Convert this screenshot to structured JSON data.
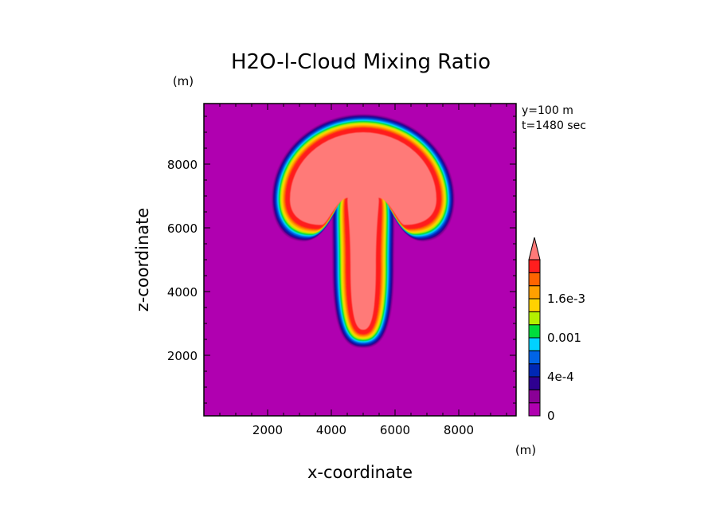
{
  "chart_data": {
    "type": "heatmap",
    "title": "H2O-l-Cloud Mixing Ratio",
    "xlabel": "x-coordinate",
    "ylabel": "z-coordinate",
    "x_unit": "(m)",
    "y_unit": "(m)",
    "xlim": [
      0,
      9800
    ],
    "ylim": [
      100,
      9900
    ],
    "xticks": [
      2000,
      4000,
      6000,
      8000
    ],
    "yticks": [
      2000,
      4000,
      6000,
      8000
    ],
    "annotations": [
      "y=100 m",
      "t=1480 sec"
    ],
    "colorbar": {
      "colors": [
        "#b000b0",
        "#8a0096",
        "#2e0090",
        "#0028b4",
        "#0064e6",
        "#00d2ff",
        "#00dc3c",
        "#b4f000",
        "#ffd200",
        "#ffa000",
        "#ff6400",
        "#ff1e1e",
        "#ff7a78"
      ],
      "labels": [
        {
          "level": 0,
          "text": "0"
        },
        {
          "level": 3,
          "text": "4e-4"
        },
        {
          "level": 6,
          "text": "0.001"
        },
        {
          "level": 9,
          "text": "1.6e-3"
        }
      ],
      "extend": "max"
    },
    "field": {
      "description_levels": "cloud shape: mushroom-like cap with stem",
      "cap": {
        "center_x": 5000,
        "center_z": 6900,
        "radius_x": 2400,
        "top_z": 9100
      },
      "stem": {
        "center_x": 5000,
        "bottom_z": 2700,
        "half_width": 500
      }
    }
  }
}
